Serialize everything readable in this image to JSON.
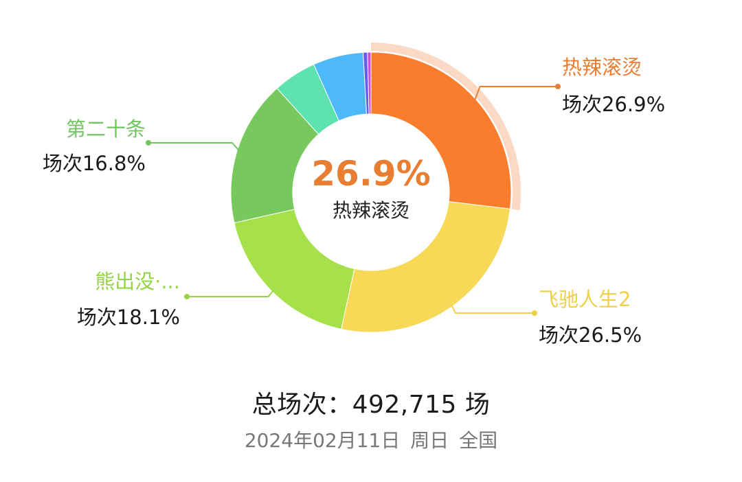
{
  "chart_data": {
    "type": "pie",
    "donut": true,
    "center": {
      "value": "26.9%",
      "label": "热辣滚烫",
      "color": "#e87e32"
    },
    "slices": [
      {
        "name": "热辣滚烫",
        "value": 26.9,
        "label": "场次26.9%",
        "color": "#f97d2d",
        "label_color": "#e87e32",
        "highlight": true
      },
      {
        "name": "飞驰人生2",
        "value": 26.5,
        "label": "场次26.5%",
        "color": "#f8d957",
        "label_color": "#eed04a"
      },
      {
        "name": "熊出没·...",
        "value": 18.1,
        "label": "场次18.1%",
        "color": "#a6e04a",
        "label_color": "#95d444"
      },
      {
        "name": "第二十条",
        "value": 16.8,
        "label": "场次16.8%",
        "color": "#78c95d",
        "label_color": "#71c661"
      },
      {
        "value": 5.0,
        "color": "#5ee3b0"
      },
      {
        "value": 5.8,
        "color": "#4db8fa"
      },
      {
        "value": 0.5,
        "color": "#6b5cf0"
      },
      {
        "value": 0.4,
        "color": "#c94fd6"
      }
    ]
  },
  "footer": {
    "total_prefix": "总场次：",
    "total_value": "492,715",
    "total_unit": "场",
    "date": "2024年02月11日",
    "weekday": "周日",
    "region": "全国"
  }
}
